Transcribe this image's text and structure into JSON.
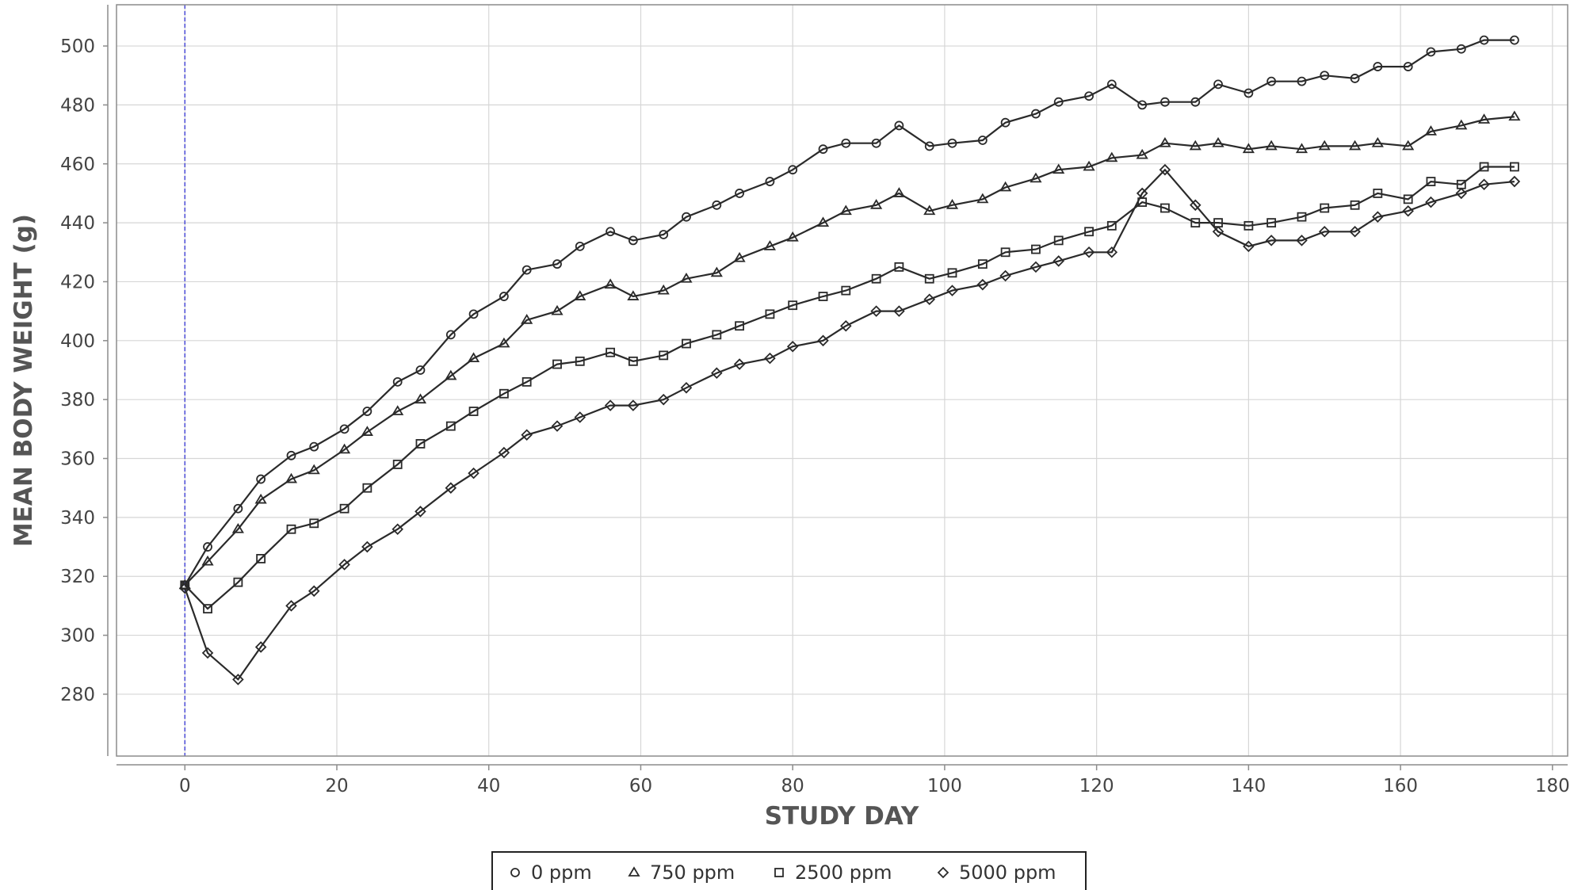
{
  "chart_data": {
    "type": "line",
    "title": "",
    "xlabel": "STUDY DAY",
    "ylabel": "MEAN BODY WEIGHT (g)",
    "xlim": [
      -9,
      182
    ],
    "ylim": [
      259,
      514
    ],
    "x_ticks": [
      0,
      20,
      40,
      60,
      80,
      100,
      120,
      140,
      160,
      180
    ],
    "y_ticks": [
      280,
      300,
      320,
      340,
      360,
      380,
      400,
      420,
      440,
      460,
      480,
      500
    ],
    "grid": true,
    "reference_line_x": 0,
    "legend_position": "bottom-center",
    "colors": {
      "series": "#2a2a2a",
      "grid": "#d6d6d6",
      "reference_line": "#4b4bd6",
      "frame": "#8c8c8c"
    },
    "x": [
      0,
      3,
      7,
      10,
      14,
      17,
      21,
      24,
      28,
      31,
      35,
      38,
      42,
      45,
      49,
      52,
      56,
      59,
      63,
      66,
      70,
      73,
      77,
      80,
      84,
      87,
      91,
      94,
      98,
      101,
      105,
      108,
      112,
      115,
      119,
      122,
      126,
      129,
      133,
      136,
      140,
      143,
      147,
      150,
      154,
      157,
      161,
      164,
      168,
      171,
      175
    ],
    "series": [
      {
        "name": "0 ppm",
        "marker": "circle",
        "values": [
          317,
          330,
          343,
          353,
          361,
          364,
          370,
          376,
          386,
          390,
          402,
          409,
          415,
          424,
          426,
          432,
          437,
          434,
          436,
          442,
          446,
          450,
          454,
          458,
          465,
          467,
          467,
          473,
          466,
          467,
          468,
          474,
          477,
          481,
          483,
          487,
          480,
          481,
          481,
          487,
          484,
          488,
          488,
          490,
          489,
          493,
          493,
          498,
          499,
          502,
          502
        ]
      },
      {
        "name": "750 ppm",
        "marker": "triangle",
        "values": [
          317,
          325,
          336,
          346,
          353,
          356,
          363,
          369,
          376,
          380,
          388,
          394,
          399,
          407,
          410,
          415,
          419,
          415,
          417,
          421,
          423,
          428,
          432,
          435,
          440,
          444,
          446,
          450,
          444,
          446,
          448,
          452,
          455,
          458,
          459,
          462,
          463,
          467,
          466,
          467,
          465,
          466,
          465,
          466,
          466,
          467,
          466,
          471,
          473,
          475,
          476
        ]
      },
      {
        "name": "2500 ppm",
        "marker": "square",
        "values": [
          317,
          309,
          318,
          326,
          336,
          338,
          343,
          350,
          358,
          365,
          371,
          376,
          382,
          386,
          392,
          393,
          396,
          393,
          395,
          399,
          402,
          405,
          409,
          412,
          415,
          417,
          421,
          425,
          421,
          423,
          426,
          430,
          431,
          434,
          437,
          439,
          447,
          445,
          440,
          440,
          439,
          440,
          442,
          445,
          446,
          450,
          448,
          454,
          453,
          459,
          459
        ]
      },
      {
        "name": "5000 ppm",
        "marker": "diamond",
        "values": [
          316,
          294,
          285,
          296,
          310,
          315,
          324,
          330,
          336,
          342,
          350,
          355,
          362,
          368,
          371,
          374,
          378,
          378,
          380,
          384,
          389,
          392,
          394,
          398,
          400,
          405,
          410,
          410,
          414,
          417,
          419,
          422,
          425,
          427,
          430,
          430,
          450,
          458,
          446,
          437,
          432,
          434,
          434,
          437,
          437,
          442,
          444,
          447,
          450,
          453,
          454
        ]
      }
    ]
  }
}
